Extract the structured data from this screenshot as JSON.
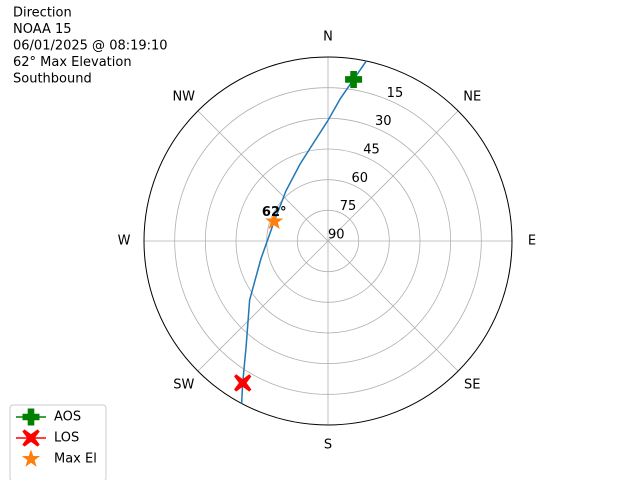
{
  "chart_data": {
    "type": "polar",
    "title_lines": [
      "Direction",
      "NOAA 15",
      "06/01/2025 @ 08:19:10",
      "62° Max Elevation",
      "Southbound"
    ],
    "theta_direction": "clockwise",
    "theta_zero": "N",
    "thetaticks": [
      {
        "value": 0,
        "label": "N"
      },
      {
        "value": 45,
        "label": "NE"
      },
      {
        "value": 90,
        "label": "E"
      },
      {
        "value": 135,
        "label": "SE"
      },
      {
        "value": 180,
        "label": "S"
      },
      {
        "value": 225,
        "label": "SW"
      },
      {
        "value": 270,
        "label": "W"
      },
      {
        "value": 315,
        "label": "NW"
      }
    ],
    "rlim": [
      90,
      0
    ],
    "rticks": [
      15,
      30,
      45,
      60,
      75,
      90
    ],
    "grid": true,
    "legend": "lower left",
    "series": [
      {
        "type": "line",
        "color": "#1f77b4",
        "x": [
          12,
          9,
          5,
          0,
          350,
          340,
          320,
          290,
          255,
          233,
          218,
          211,
          208
        ],
        "values": [
          0,
          10,
          20,
          31,
          43,
          50,
          58,
          62,
          56,
          42,
          25,
          9,
          0
        ]
      },
      {
        "type": "marker",
        "name": "AOS",
        "marker": "plus",
        "color": "#008000",
        "x": [
          9
        ],
        "values": [
          10
        ]
      },
      {
        "type": "marker",
        "name": "LOS",
        "marker": "x",
        "color": "#ff0000",
        "x": [
          211
        ],
        "values": [
          9
        ]
      },
      {
        "type": "marker",
        "name": "Max El",
        "marker": "star",
        "color": "#ff7f0e",
        "x": [
          290
        ],
        "values": [
          62
        ],
        "value_labels": [
          "62°"
        ]
      }
    ]
  }
}
